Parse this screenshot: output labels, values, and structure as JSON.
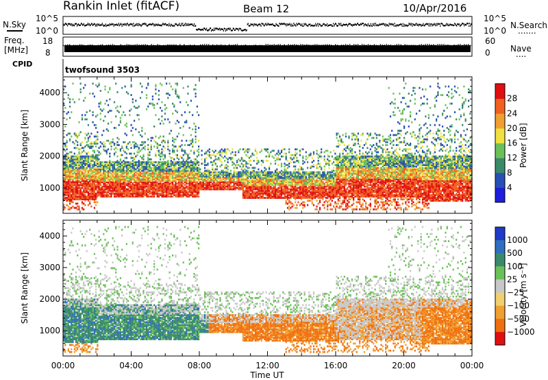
{
  "header": {
    "station": "Rankin Inlet (fitACF)",
    "beam": "Beam 12",
    "date": "10/Apr/2016"
  },
  "top_panels": {
    "nsky": {
      "label": "N.Sky",
      "ticks_left": [
        "10^5",
        "10^0"
      ],
      "right_label": "N.Search",
      "ticks_right": [
        "10^5",
        "10^0"
      ],
      "right_dots": "......."
    },
    "freq": {
      "label_line1": "Freq.",
      "label_line2": "[MHz]",
      "ticks_left": [
        "18",
        "8"
      ],
      "right_label": "Nave",
      "ticks_right": [
        "60",
        "0"
      ],
      "right_dots": "...."
    },
    "cpid": {
      "label": "CPID",
      "value": "twofsound 3503"
    }
  },
  "chart_data": [
    {
      "type": "heatmap",
      "name": "power-panel",
      "ylabel": "Slant Range [km]",
      "ylim": [
        200,
        4500
      ],
      "yticks": [
        "1000",
        "2000",
        "3000",
        "4000"
      ],
      "xlim": [
        0,
        24
      ],
      "colorbar": {
        "label": "Power [dB]",
        "ticks": [
          "4",
          "8",
          "12",
          "16",
          "20",
          "24",
          "28"
        ],
        "colors": [
          "#1e1edc",
          "#2850b4",
          "#3a8a6a",
          "#6cc05a",
          "#f0e040",
          "#f0a030",
          "#f06020",
          "#e01010"
        ]
      }
    },
    {
      "type": "heatmap",
      "name": "velocity-panel",
      "ylabel": "Slant Range [km]",
      "ylim": [
        200,
        4500
      ],
      "yticks": [
        "1000",
        "2000",
        "3000",
        "4000"
      ],
      "xlabel": "Time UT",
      "xticks": [
        "00:00",
        "04:00",
        "08:00",
        "12:00",
        "16:00",
        "20:00",
        "00:00"
      ],
      "xlim": [
        0,
        24
      ],
      "colorbar": {
        "label": "Velocity [m s⁻¹]",
        "ticks": [
          "1000",
          "500",
          "100",
          "25",
          "−25",
          "−100",
          "−500",
          "−1000"
        ],
        "colors": [
          "#1e3cc8",
          "#2f6ec0",
          "#3a8a6a",
          "#6cc05a",
          "#c8c8c8",
          "#f0d070",
          "#f0a030",
          "#f07010",
          "#e01010"
        ]
      }
    }
  ]
}
